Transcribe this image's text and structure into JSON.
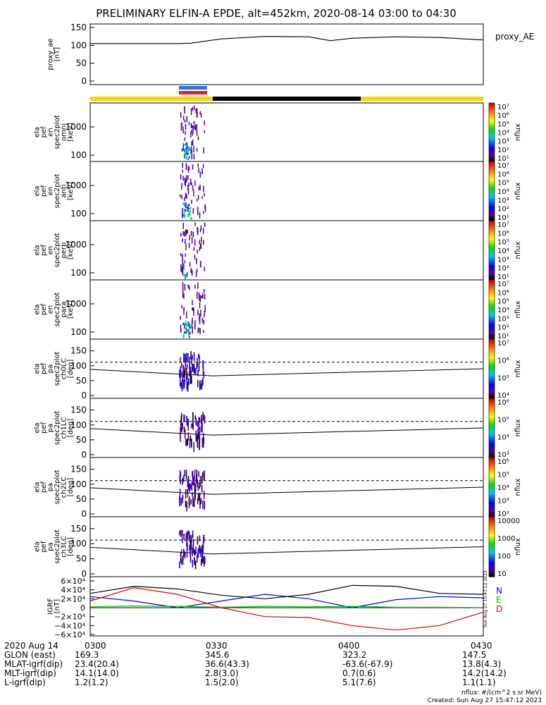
{
  "title": "PRELIMINARY ELFIN-A EPDE, alt=452km, 2020-08-14 03:00 to 04:30",
  "colors": {
    "bar_yellow": "#f5d800",
    "bar_black": "#000000",
    "bar_blue": "#1e78e6",
    "bar_red": "#e62020"
  },
  "chart_data": [
    {
      "type": "line",
      "panel": "proxy_ae",
      "ylabel": "proxy_ae\n[nT]",
      "legend": "proxy_AE",
      "ylim": [
        0,
        150
      ],
      "yticks": [
        "150",
        "100",
        "50",
        "0"
      ],
      "x": [
        "03:00",
        "03:10",
        "03:20",
        "03:23",
        "03:30",
        "03:40",
        "03:50",
        "03:55",
        "04:00",
        "04:10",
        "04:20",
        "04:30"
      ],
      "values": [
        105,
        105,
        105,
        106,
        118,
        125,
        124,
        113,
        120,
        124,
        122,
        115
      ]
    },
    {
      "type": "heatmap",
      "panel": "en_omni",
      "ylabel": "ela\npef\nen\nspec2plot\nomni\n[keV]",
      "yticks": [
        "1000",
        "100"
      ],
      "colorbar": {
        "label": "nflux",
        "ticks": [
          "10⁷",
          "10⁶",
          "10⁵",
          "10⁴",
          "10³",
          "10²",
          "10¹"
        ]
      }
    },
    {
      "type": "heatmap",
      "panel": "en_anti",
      "ylabel": "ela\npef\nen\nspec2plot\nanti\n[keV]",
      "yticks": [
        "1000",
        "100"
      ],
      "colorbar": {
        "label": "nflux",
        "ticks": [
          "10⁷",
          "10⁶",
          "10⁵",
          "10⁴",
          "10³",
          "10²",
          "10¹"
        ]
      }
    },
    {
      "type": "heatmap",
      "panel": "en_perp",
      "ylabel": "ela\npef\nen\nspec2plot\nperp\n[keV]",
      "yticks": [
        "1000",
        "100"
      ],
      "colorbar": {
        "label": "nflux",
        "ticks": [
          "10⁷",
          "10⁶",
          "10⁵",
          "10⁴",
          "10³",
          "10²",
          "10¹"
        ]
      }
    },
    {
      "type": "heatmap",
      "panel": "en_para",
      "ylabel": "ela\npef\nen\nspec2plot\npara\n[keV]",
      "yticks": [
        "1000",
        "100"
      ],
      "colorbar": {
        "label": "nflux",
        "ticks": [
          "10⁷",
          "10⁶",
          "10⁵",
          "10⁴",
          "10³",
          "10²",
          "10¹"
        ]
      }
    },
    {
      "type": "heatmap",
      "panel": "pa_ch0",
      "ylabel": "ela\npef\npa\nspec2plot\nch0LC\n[deg]",
      "ylim": [
        0,
        180
      ],
      "yticks": [
        "150",
        "100",
        "50",
        "0"
      ],
      "colorbar": {
        "label": "nflux",
        "ticks": [
          "10⁷",
          "10⁶",
          "10⁵",
          "10⁴"
        ]
      }
    },
    {
      "type": "heatmap",
      "panel": "pa_ch1",
      "ylabel": "ela\npef\npa\nspec2plot\nch1LC\n[deg]",
      "ylim": [
        0,
        180
      ],
      "yticks": [
        "150",
        "100",
        "50",
        "0"
      ],
      "colorbar": {
        "label": "nflux",
        "ticks": [
          "10⁶",
          "10⁵",
          "10⁴",
          "10³"
        ]
      }
    },
    {
      "type": "heatmap",
      "panel": "pa_ch2",
      "ylabel": "ela\npef\npa\nspec2plot\nch2LC\n[deg]",
      "ylim": [
        0,
        180
      ],
      "yticks": [
        "150",
        "100",
        "50",
        "0"
      ],
      "colorbar": {
        "label": "nflux",
        "ticks": [
          "10⁶",
          "10⁵",
          "10⁴",
          "10³",
          "10²"
        ]
      }
    },
    {
      "type": "heatmap",
      "panel": "pa_ch3",
      "ylabel": "ela\npef\npa\nspec2plot\nch3LC\n[deg]",
      "ylim": [
        0,
        180
      ],
      "yticks": [
        "150",
        "100",
        "50",
        "0"
      ],
      "colorbar": {
        "label": "nflux",
        "ticks": [
          "10000",
          "1000",
          "100",
          "10"
        ]
      }
    },
    {
      "type": "line",
      "panel": "igrf",
      "ylabel": "IGRF\n[nT]",
      "ylim": [
        -60000,
        60000
      ],
      "yticks": [
        "6×10⁴",
        "4×10⁴",
        "2×10⁴",
        "0",
        "−2×10⁴",
        "−4×10⁴",
        "−6×10⁴"
      ],
      "legend": [
        "N",
        "E",
        "D"
      ],
      "x": [
        "03:00",
        "03:10",
        "03:20",
        "03:30",
        "03:40",
        "03:50",
        "04:00",
        "04:10",
        "04:20",
        "04:30"
      ],
      "series": [
        {
          "name": "N",
          "color": "#0000ff",
          "values": [
            25000,
            15000,
            0,
            15000,
            30000,
            20000,
            0,
            18000,
            25000,
            22000
          ]
        },
        {
          "name": "E",
          "color": "#00c000",
          "values": [
            2000,
            4000,
            3000,
            1000,
            3000,
            2000,
            3000,
            1000,
            1000,
            500
          ]
        },
        {
          "name": "D",
          "color": "#e00000",
          "values": [
            15000,
            45000,
            30000,
            0,
            -20000,
            -22000,
            -40000,
            -50000,
            -40000,
            -10000
          ]
        },
        {
          "name": "",
          "color": "#000000",
          "values": [
            32000,
            48000,
            42000,
            28000,
            20000,
            30000,
            50000,
            48000,
            32000,
            30000
          ]
        }
      ]
    }
  ],
  "axis_labels": {
    "time_ticks": [
      "0300",
      "0330",
      "0400",
      "0430"
    ]
  },
  "footer": {
    "date": "2020 Aug 14",
    "rows": [
      {
        "label": "GLON (east)",
        "values": [
          "169.3",
          "345.6",
          "323.2",
          "147.5"
        ]
      },
      {
        "label": "MLAT-igrf(dip)",
        "values": [
          "23.4(20.4)",
          "36.6(43.3)",
          "-63.6(-67.9)",
          "13.8(4.3)"
        ]
      },
      {
        "label": "MLT-igrf(dip)",
        "values": [
          "14.1(14.0)",
          "2.8(3.0)",
          "0.7(0.6)",
          "14.2(14.2)"
        ]
      },
      {
        "label": "L-igrf(dip)",
        "values": [
          "1.2(1.2)",
          "1.5(2.0)",
          "5.1(7.6)",
          "1.1(1.1)"
        ]
      }
    ],
    "units_note": "nflux: #/(cm^2 s sr MeV)",
    "created": "Created: Sun Aug 27 15:47:12 2023",
    "side_stamp": "Sun Aug 27 15:47:12 2023"
  }
}
